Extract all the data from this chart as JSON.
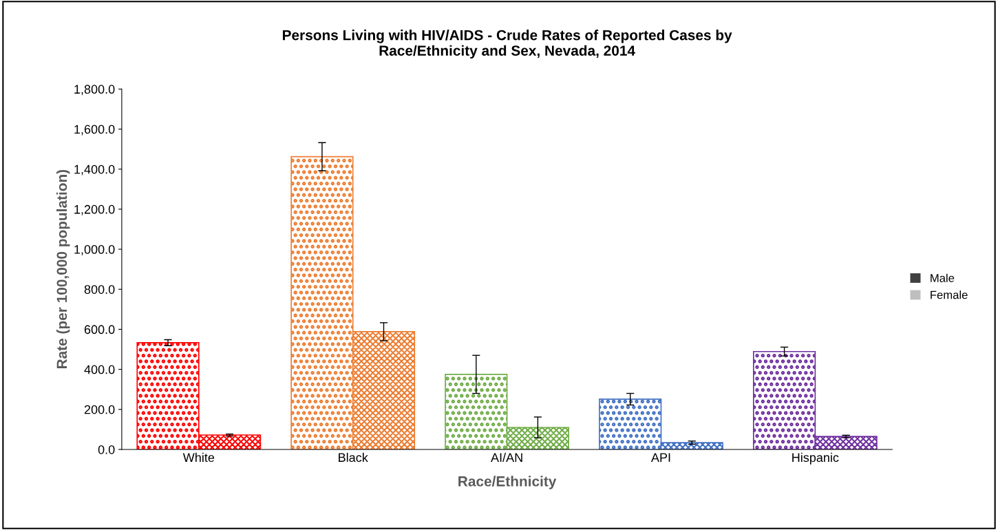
{
  "chart_data": {
    "type": "bar",
    "title": "Persons Living with HIV/AIDS - Crude Rates of Reported Cases by\nRace/Ethnicity and Sex, Nevada, 2014",
    "xlabel": "Race/Ethnicity",
    "ylabel": "Rate (per 100,000 population)",
    "categories": [
      "White",
      "Black",
      "AI/AN",
      "API",
      "Hispanic"
    ],
    "series": [
      {
        "name": "Male",
        "color": "#404040",
        "colors": [
          "#ff0000",
          "#ed7d31",
          "#70ad47",
          "#4472c4",
          "#7030a0"
        ],
        "values": [
          533,
          1462,
          375,
          251,
          489
        ],
        "errors": [
          15,
          70,
          95,
          29,
          22
        ]
      },
      {
        "name": "Female",
        "color": "#bfbfbf",
        "colors": [
          "#ff0000",
          "#ed7d31",
          "#70ad47",
          "#4472c4",
          "#7030a0"
        ],
        "values": [
          72,
          588,
          110,
          34,
          65
        ],
        "errors": [
          5,
          45,
          52,
          8,
          6
        ]
      }
    ],
    "ylim": [
      0,
      1800
    ],
    "yticks": [
      {
        "value": 0,
        "label": "0.0"
      },
      {
        "value": 200,
        "label": "200.0"
      },
      {
        "value": 400,
        "label": "400.0"
      },
      {
        "value": 600,
        "label": "600.0"
      },
      {
        "value": 800,
        "label": "800.0"
      },
      {
        "value": 1000,
        "label": "1,000.0"
      },
      {
        "value": 1200,
        "label": "1,200.0"
      },
      {
        "value": 1400,
        "label": "1,400.0"
      },
      {
        "value": 1600,
        "label": "1,600.0"
      },
      {
        "value": 1800,
        "label": "1,800.0"
      }
    ],
    "grid": false,
    "legend": "right"
  }
}
